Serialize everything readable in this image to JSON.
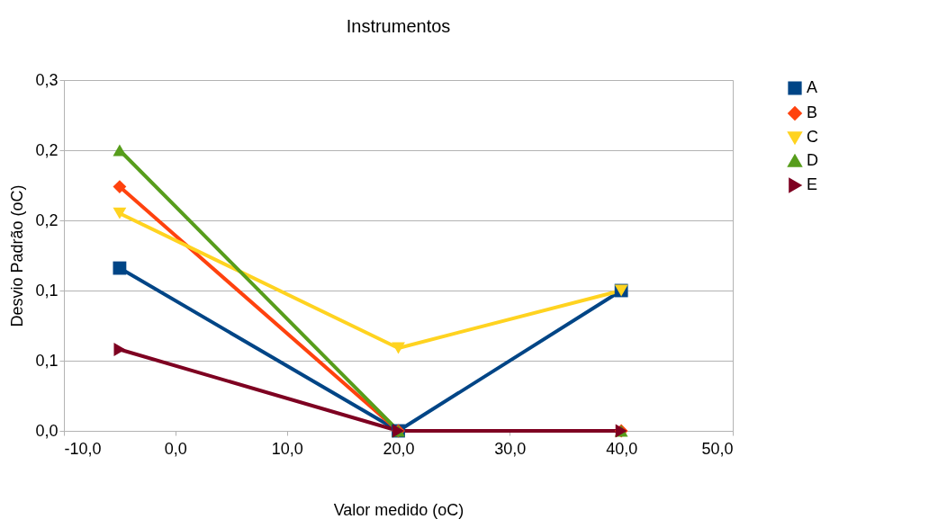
{
  "chart_data": {
    "type": "line",
    "title": "Instrumentos",
    "xlabel": "Valor medido (oC)",
    "ylabel": "Desvio Padrão (oC)",
    "x": [
      -5,
      20,
      40
    ],
    "series": [
      {
        "name": "A",
        "color": "#004586",
        "marker": "square",
        "values": [
          0.116,
          0,
          0.1
        ]
      },
      {
        "name": "B",
        "color": "#ff420e",
        "marker": "diamond",
        "values": [
          0.174,
          0,
          0
        ]
      },
      {
        "name": "C",
        "color": "#ffd320",
        "marker": "triangle-down",
        "values": [
          0.155,
          0.059,
          0.1
        ]
      },
      {
        "name": "D",
        "color": "#579d1c",
        "marker": "triangle-up",
        "values": [
          0.2,
          0,
          0
        ]
      },
      {
        "name": "E",
        "color": "#7e0021",
        "marker": "triangle-right",
        "values": [
          0.058,
          0,
          0
        ]
      }
    ],
    "xlim": [
      -10,
      50
    ],
    "xticks": [
      {
        "value": -10,
        "label": "-10,0"
      },
      {
        "value": 0,
        "label": "0,0"
      },
      {
        "value": 10,
        "label": "10,0"
      },
      {
        "value": 20,
        "label": "20,0"
      },
      {
        "value": 30,
        "label": "30,0"
      },
      {
        "value": 40,
        "label": "40,0"
      },
      {
        "value": 50,
        "label": "50,0"
      }
    ],
    "ylim": [
      0,
      0.25
    ],
    "yticks": [
      {
        "value": 0,
        "label": "0,0"
      },
      {
        "value": 0.05,
        "label": "0,1"
      },
      {
        "value": 0.1,
        "label": "0,1"
      },
      {
        "value": 0.15,
        "label": "0,2"
      },
      {
        "value": 0.2,
        "label": "0,2"
      },
      {
        "value": 0.25,
        "label": "0,3"
      }
    ],
    "grid": "y",
    "legend": "right",
    "line_style": "solid"
  }
}
